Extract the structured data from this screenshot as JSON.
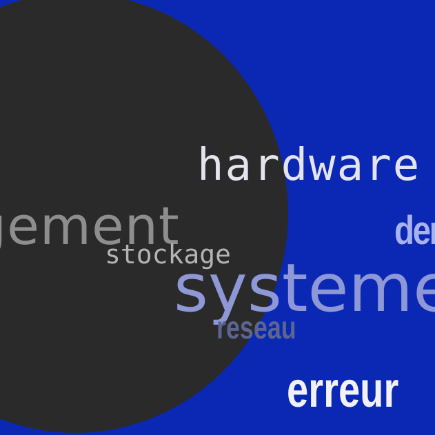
{
  "colors": {
    "background": "#0a28b4",
    "circle": "#2a2a2a"
  },
  "words": {
    "hardware": "hardware",
    "chargement": "rgement",
    "dern": "der",
    "stockage": "stockage",
    "systeme": "systeme",
    "reseau": "reseau",
    "erreur": "erreur"
  }
}
